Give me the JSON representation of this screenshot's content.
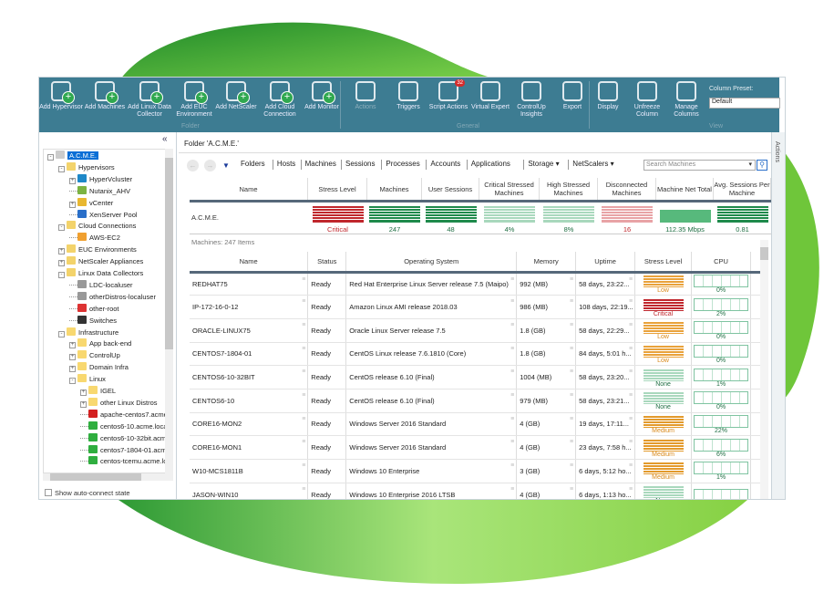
{
  "colors": {
    "ribbon": "#3d7c92",
    "critical": "#c0272d",
    "ok": "#1f8a4c",
    "low": "#d98a1c",
    "selection": "#0a6fd6"
  },
  "ribbon": {
    "folder_group": "Folder",
    "general_group": "General",
    "view_group": "View",
    "buttons": [
      {
        "label": "Add Hypervisor",
        "icon": "add-hypervisor-icon"
      },
      {
        "label": "Add Machines",
        "icon": "add-machines-icon"
      },
      {
        "label": "Add Linux Data Collector",
        "icon": "add-linux-icon"
      },
      {
        "label": "Add EUC Environment",
        "icon": "add-euc-icon"
      },
      {
        "label": "Add NetScaler",
        "icon": "add-netscaler-icon"
      },
      {
        "label": "Add Cloud Connection",
        "icon": "add-cloud-icon"
      },
      {
        "label": "Add Monitor",
        "icon": "add-monitor-icon"
      },
      {
        "label": "Actions",
        "icon": "gear-icon"
      },
      {
        "label": "Triggers",
        "icon": "trigger-icon"
      },
      {
        "label": "Script Actions",
        "icon": "script-icon",
        "badge": "32"
      },
      {
        "label": "Virtual Expert",
        "icon": "virtual-expert-icon"
      },
      {
        "label": "ControlUp Insights",
        "icon": "insights-icon"
      },
      {
        "label": "Export",
        "icon": "export-icon"
      },
      {
        "label": "Display",
        "icon": "display-icon"
      },
      {
        "label": "Unfreeze Column",
        "icon": "unfreeze-icon"
      },
      {
        "label": "Manage Columns",
        "icon": "manage-columns-icon"
      }
    ],
    "column_preset_label": "Column Preset:",
    "column_preset_value": "Default"
  },
  "tree": {
    "collapse": "«",
    "items": [
      {
        "label": "A.C.M.E.",
        "level": 0,
        "exp": "-",
        "color": "#ccc",
        "selected": true
      },
      {
        "label": "Hypervisors",
        "level": 1,
        "exp": "-",
        "color": "#f3d36b"
      },
      {
        "label": "HyperVcluster",
        "level": 2,
        "exp": "+",
        "color": "#1e88c8"
      },
      {
        "label": "Nutanix_AHV",
        "level": 2,
        "color": "#7cb342"
      },
      {
        "label": "vCenter",
        "level": 2,
        "exp": "+",
        "color": "#e8b730"
      },
      {
        "label": "XenServer Pool",
        "level": 2,
        "color": "#2a6fc9"
      },
      {
        "label": "Cloud Connections",
        "level": 1,
        "exp": "-",
        "color": "#f3d36b"
      },
      {
        "label": "AWS-EC2",
        "level": 2,
        "color": "#f0a030"
      },
      {
        "label": "EUC Environments",
        "level": 1,
        "exp": "+",
        "color": "#f3d36b"
      },
      {
        "label": "NetScaler Appliances",
        "level": 1,
        "exp": "+",
        "color": "#f3d36b"
      },
      {
        "label": "Linux Data Collectors",
        "level": 1,
        "exp": "-",
        "color": "#f3d36b"
      },
      {
        "label": "LDC-localuser",
        "level": 2,
        "color": "#999"
      },
      {
        "label": "otherDistros-localuser",
        "level": 2,
        "color": "#999"
      },
      {
        "label": "other-root",
        "level": 2,
        "color": "#d33"
      },
      {
        "label": "Switches",
        "level": 2,
        "color": "#333"
      },
      {
        "label": "Infrastructure",
        "level": 1,
        "exp": "-",
        "color": "#f8d870"
      },
      {
        "label": "App back-end",
        "level": 2,
        "exp": "+",
        "color": "#f8d870"
      },
      {
        "label": "ControlUp",
        "level": 2,
        "exp": "+",
        "color": "#f8d870"
      },
      {
        "label": "Domain Infra",
        "level": 2,
        "exp": "+",
        "color": "#f8d870"
      },
      {
        "label": "Linux",
        "level": 2,
        "exp": "-",
        "color": "#f8d870"
      },
      {
        "label": "IGEL",
        "level": 3,
        "exp": "+",
        "color": "#f8d870"
      },
      {
        "label": "other Linux Distros",
        "level": 3,
        "exp": "+",
        "color": "#f8d870"
      },
      {
        "label": "apache-centos7.acme",
        "level": 3,
        "color": "#d32020"
      },
      {
        "label": "centos6-10.acme.local",
        "level": 3,
        "color": "#2fae3f"
      },
      {
        "label": "centos6-10-32bit.acme",
        "level": 3,
        "color": "#2fae3f"
      },
      {
        "label": "centos7-1804-01.acme",
        "level": 3,
        "color": "#2fae3f"
      },
      {
        "label": "centos-tcemu.acme.loc",
        "level": 3,
        "color": "#2fae3f"
      }
    ],
    "show_auto_connect": "Show auto-connect state"
  },
  "main": {
    "folder_title": "Folder 'A.C.M.E.'",
    "nav": [
      "Folders",
      "Hosts",
      "Machines",
      "Sessions",
      "Processes",
      "Accounts",
      "Applications",
      "Storage ▾",
      "NetScalers ▾"
    ],
    "search_placeholder": "Search Machines",
    "actions_label": "Actions",
    "summary": {
      "headers": [
        "Name",
        "Stress Level",
        "Machines",
        "User Sessions",
        "Critical Stressed Machines",
        "High Stressed Machines",
        "Disconnected Machines",
        "Machine Net Total",
        "Avg. Sessions Per Machine"
      ],
      "name": "A.C.M.E.",
      "values": [
        {
          "v": "Critical",
          "c": "#c0272d"
        },
        {
          "v": "247",
          "c": "#1f8a4c"
        },
        {
          "v": "48",
          "c": "#1f8a4c"
        },
        {
          "v": "4%",
          "c": "#a9d8bd"
        },
        {
          "v": "8%",
          "c": "#a9d8bd"
        },
        {
          "v": "16",
          "c": "#e8a3a6"
        },
        {
          "v": "112.35 Mbps",
          "c": "#57b97c"
        },
        {
          "v": "0.81",
          "c": "#1f8a4c"
        }
      ]
    },
    "machines_count": "Machines: 247 Items",
    "grid": {
      "headers": [
        "Name",
        "Status",
        "Operating System",
        "Memory",
        "Uptime",
        "Stress Level",
        "CPU"
      ],
      "rows": [
        [
          "REDHAT75",
          "Ready",
          "Red Hat Enterprise Linux Server release 7.5 (Maipo)",
          "992 (MB)",
          "58 days, 23:22...",
          "Low",
          "0%"
        ],
        [
          "IP-172-16-0-12",
          "Ready",
          "Amazon Linux AMI release 2018.03",
          "986 (MB)",
          "108 days, 22:19...",
          "Critical",
          "2%"
        ],
        [
          "ORACLE-LINUX75",
          "Ready",
          "Oracle Linux Server release 7.5",
          "1.8 (GB)",
          "58 days, 22:29...",
          "Low",
          "0%"
        ],
        [
          "CENTOS7-1804-01",
          "Ready",
          "CentOS Linux release 7.6.1810 (Core)",
          "1.8 (GB)",
          "84 days, 5:01 h...",
          "Low",
          "0%"
        ],
        [
          "CENTOS6-10-32BIT",
          "Ready",
          "CentOS release 6.10 (Final)",
          "1004 (MB)",
          "58 days, 23:20...",
          "None",
          "1%"
        ],
        [
          "CENTOS6-10",
          "Ready",
          "CentOS release 6.10 (Final)",
          "979 (MB)",
          "58 days, 23:21...",
          "None",
          "0%"
        ],
        [
          "CORE16-MON2",
          "Ready",
          "Windows Server 2016 Standard",
          "4 (GB)",
          "19 days, 17:11...",
          "Medium",
          "22%"
        ],
        [
          "CORE16-MON1",
          "Ready",
          "Windows Server 2016 Standard",
          "4 (GB)",
          "23 days, 7:58 h...",
          "Medium",
          "6%"
        ],
        [
          "W10-MCS1811B",
          "Ready",
          "Windows 10 Enterprise",
          "3 (GB)",
          "6 days, 5:12 ho...",
          "Medium",
          "1%"
        ],
        [
          "JASON-WIN10",
          "Ready",
          "Windows 10 Enterprise 2016 LTSB",
          "4 (GB)",
          "6 days, 1:13 ho...",
          "None",
          ""
        ]
      ]
    }
  }
}
